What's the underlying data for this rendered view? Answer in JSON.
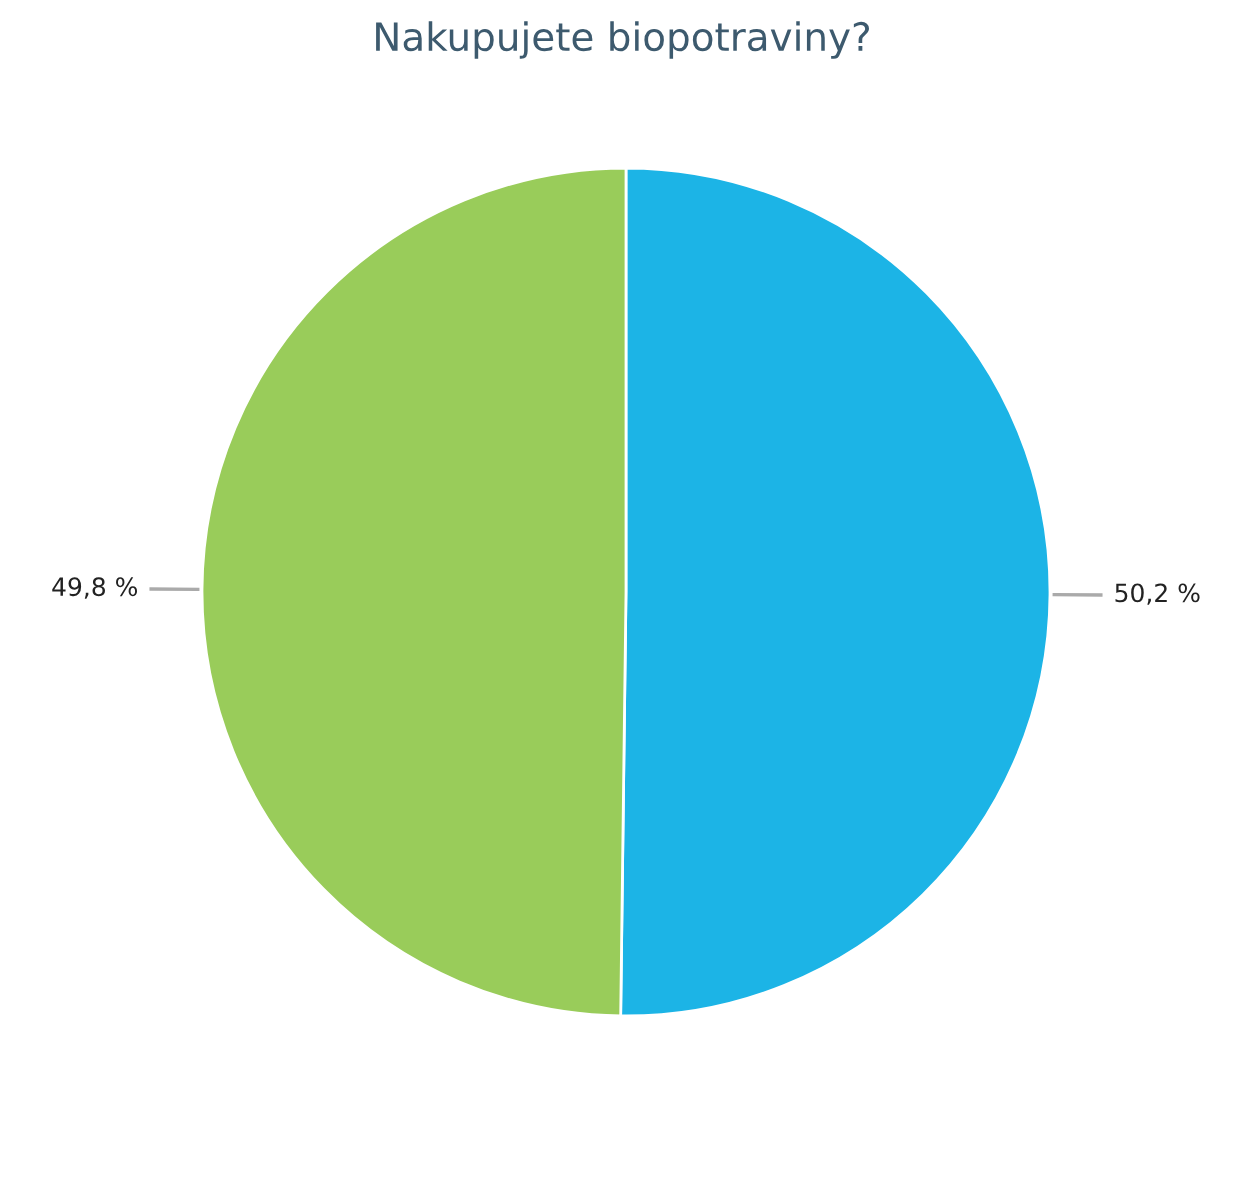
{
  "chart_data": {
    "type": "pie",
    "title": "Nakupujete biopotraviny?",
    "categories": [
      null,
      null
    ],
    "values": [
      50.2,
      49.8
    ],
    "colors": [
      "#1cb4e6",
      "#99cc5a"
    ],
    "value_labels": [
      "50,2 %",
      "49,8 %"
    ],
    "legend": false
  }
}
